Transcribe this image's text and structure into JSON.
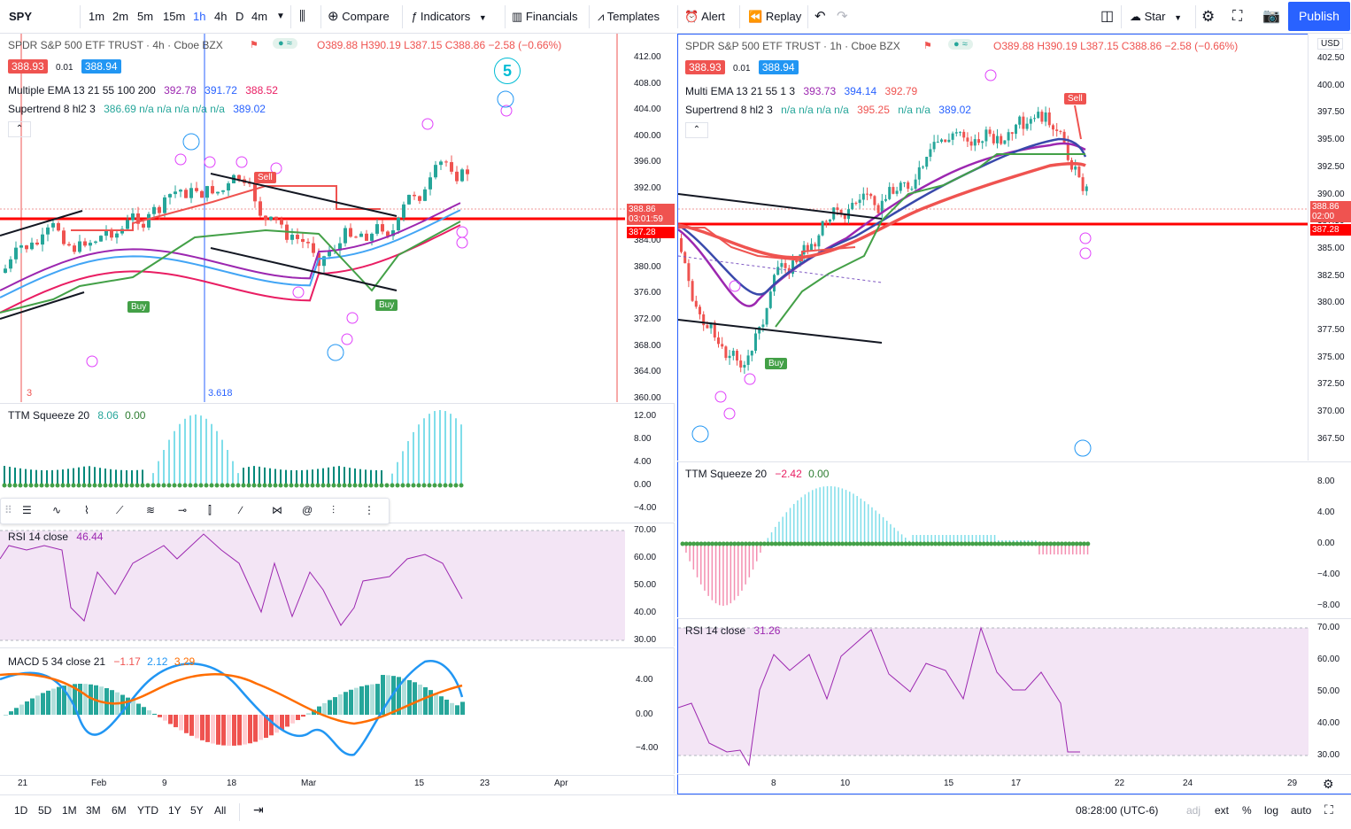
{
  "toolbar": {
    "symbol": "SPY",
    "intervals": [
      "1m",
      "2m",
      "5m",
      "15m",
      "1h",
      "4h",
      "D",
      "4m"
    ],
    "active_interval": "1h",
    "compare": "Compare",
    "indicators": "Indicators",
    "financials": "Financials",
    "templates": "Templates",
    "alert": "Alert",
    "replay": "Replay",
    "star": "Star",
    "publish": "Publish"
  },
  "left_chart": {
    "title": "SPDR S&P 500 ETF TRUST · 4h · Cboe BZX",
    "ohlc": "O389.88 H390.19 L387.15 C388.86 −2.58 (−0.66%)",
    "bid": "388.93",
    "spread": "0.01",
    "ask": "388.94",
    "ema_label": "Multiple EMA 13 21 55 100 200",
    "ema_values": [
      "392.78",
      "391.72",
      "388.52"
    ],
    "supertrend_label": "Supertrend 8 hl2 3",
    "supertrend_values": "386.69  n/a  n/a  n/a  n/a  n/a",
    "supertrend_last": "389.02",
    "price_axis": [
      "412.00",
      "408.00",
      "404.00",
      "400.00",
      "396.00",
      "392.00",
      "388.00",
      "384.00",
      "380.00",
      "376.00",
      "372.00",
      "368.00",
      "364.00",
      "360.00"
    ],
    "last_price_tag": "388.86",
    "countdown": "03:01:59",
    "line_tag": "387.28",
    "fib_label_1": "3",
    "fib_label_2": "3.618",
    "sell_label": "Sell",
    "buy_label": "Buy",
    "buy_label_2": "Buy",
    "wave_big": "5",
    "ttm_label": "TTM Squeeze 20",
    "ttm_v1": "8.06",
    "ttm_v2": "0.00",
    "ttm_axis": [
      "12.00",
      "8.00",
      "4.00",
      "0.00",
      "−4.00"
    ],
    "rsi_label": "RSI 14 close",
    "rsi_value": "46.44",
    "rsi_axis": [
      "70.00",
      "60.00",
      "50.00",
      "40.00",
      "30.00"
    ],
    "macd_label": "MACD 5 34 close 21",
    "macd_v1": "−1.17",
    "macd_v2": "2.12",
    "macd_v3": "3.29",
    "macd_axis": [
      "4.00",
      "0.00",
      "−4.00"
    ],
    "time_axis": [
      "21",
      "Feb",
      "9",
      "18",
      "Mar",
      "15",
      "23",
      "Apr"
    ]
  },
  "right_chart": {
    "title": "SPDR S&P 500 ETF TRUST · 1h · Cboe BZX",
    "ohlc": "O389.88 H390.19 L387.15 C388.86 −2.58 (−0.66%)",
    "bid": "388.93",
    "spread": "0.01",
    "ask": "388.94",
    "ema_label": "Multi EMA 13 21 55 1 3",
    "ema_values": [
      "393.73",
      "394.14",
      "392.79"
    ],
    "supertrend_label": "Supertrend 8 hl2 3",
    "supertrend_values": "n/a  n/a  n/a  n/a",
    "supertrend_mid": "395.25",
    "supertrend_end": "n/a  n/a",
    "supertrend_last": "389.02",
    "currency": "USD",
    "price_axis": [
      "402.50",
      "400.00",
      "397.50",
      "395.00",
      "392.50",
      "390.00",
      "387.50",
      "385.00",
      "382.50",
      "380.00",
      "377.50",
      "375.00",
      "372.50",
      "370.00",
      "367.50"
    ],
    "last_price_tag": "388.86",
    "countdown": "02:00",
    "line_tag": "387.28",
    "sell_label": "Sell",
    "buy_label": "Buy",
    "ttm_label": "TTM Squeeze 20",
    "ttm_v1": "−2.42",
    "ttm_v2": "0.00",
    "ttm_axis": [
      "8.00",
      "4.00",
      "0.00",
      "−4.00",
      "−8.00"
    ],
    "rsi_label": "RSI 14 close",
    "rsi_value": "31.26",
    "rsi_axis": [
      "70.00",
      "60.00",
      "50.00",
      "40.00",
      "30.00"
    ],
    "time_axis": [
      "8",
      "10",
      "15",
      "17",
      "22",
      "24",
      "29"
    ]
  },
  "bottombar": {
    "ranges": [
      "1D",
      "5D",
      "1M",
      "3M",
      "6M",
      "YTD",
      "1Y",
      "5Y",
      "All"
    ],
    "clock": "08:28:00 (UTC-6)",
    "adj": "adj",
    "ext": "ext",
    "pct": "%",
    "log": "log",
    "auto": "auto"
  },
  "colors": {
    "accent": "#2962ff",
    "up": "#26a69a",
    "down": "#ef5350",
    "red_line": "#ff0000",
    "rsi_line": "#9c27b0",
    "macd_line": "#2196f3",
    "signal_line": "#ff6d00"
  }
}
